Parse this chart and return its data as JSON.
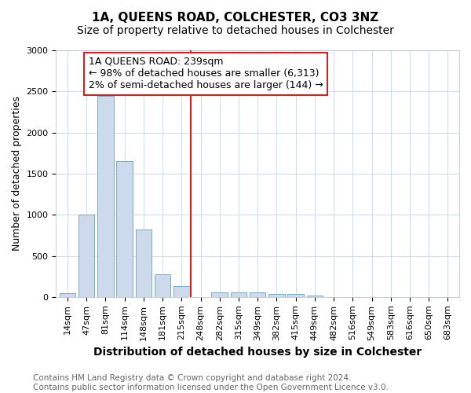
{
  "title": "1A, QUEENS ROAD, COLCHESTER, CO3 3NZ",
  "subtitle": "Size of property relative to detached houses in Colchester",
  "xlabel": "Distribution of detached houses by size in Colchester",
  "ylabel": "Number of detached properties",
  "categories": [
    "14sqm",
    "47sqm",
    "81sqm",
    "114sqm",
    "148sqm",
    "181sqm",
    "215sqm",
    "248sqm",
    "282sqm",
    "315sqm",
    "349sqm",
    "382sqm",
    "415sqm",
    "449sqm",
    "482sqm",
    "516sqm",
    "549sqm",
    "583sqm",
    "616sqm",
    "650sqm",
    "683sqm"
  ],
  "values": [
    50,
    1000,
    2450,
    1650,
    825,
    275,
    130,
    0,
    55,
    55,
    55,
    40,
    40,
    18,
    0,
    0,
    0,
    0,
    0,
    0,
    0
  ],
  "bar_color": "#ccdaeb",
  "bar_edge_color": "#7aaac8",
  "red_line_x": 7,
  "annotation_line1": "1A QUEENS ROAD: 239sqm",
  "annotation_line2": "← 98% of detached houses are smaller (6,313)",
  "annotation_line3": "2% of semi-detached houses are larger (144) →",
  "annotation_box_facecolor": "#ffffff",
  "annotation_box_edgecolor": "#cc2222",
  "red_line_color": "#cc2222",
  "ylim": [
    0,
    3000
  ],
  "yticks": [
    0,
    500,
    1000,
    1500,
    2000,
    2500,
    3000
  ],
  "footnote1": "Contains HM Land Registry data © Crown copyright and database right 2024.",
  "footnote2": "Contains public sector information licensed under the Open Government Licence v3.0.",
  "title_fontsize": 11,
  "subtitle_fontsize": 10,
  "xlabel_fontsize": 10,
  "ylabel_fontsize": 9,
  "tick_fontsize": 8,
  "footnote_fontsize": 7.5,
  "annotation_fontsize": 9,
  "background_color": "#ffffff",
  "grid_color": "#d0dce8"
}
